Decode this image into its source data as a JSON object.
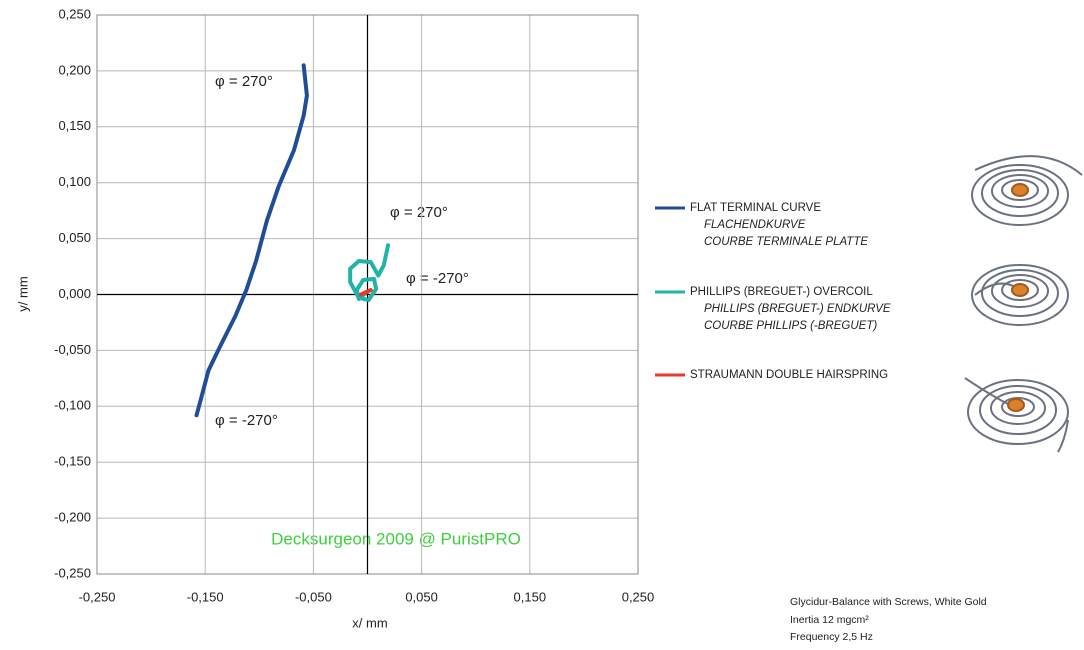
{
  "chart_data": {
    "type": "line",
    "xlabel": "x/ mm",
    "ylabel": "y/ mm",
    "xlim": [
      -0.25,
      0.25
    ],
    "ylim": [
      -0.25,
      0.25
    ],
    "xticks": [
      {
        "value": -0.25,
        "label": "-0,250"
      },
      {
        "value": -0.15,
        "label": "-0,150"
      },
      {
        "value": -0.05,
        "label": "-0,050"
      },
      {
        "value": 0.05,
        "label": "0,050"
      },
      {
        "value": 0.15,
        "label": "0,150"
      },
      {
        "value": 0.25,
        "label": "0,250"
      }
    ],
    "yticks": [
      {
        "value": -0.25,
        "label": "-0,250"
      },
      {
        "value": -0.2,
        "label": "-0,200"
      },
      {
        "value": -0.15,
        "label": "-0,150"
      },
      {
        "value": -0.1,
        "label": "-0,100"
      },
      {
        "value": -0.05,
        "label": "-0,050"
      },
      {
        "value": 0,
        "label": "0,000"
      },
      {
        "value": 0.05,
        "label": "0,050"
      },
      {
        "value": 0.1,
        "label": "0,100"
      },
      {
        "value": 0.15,
        "label": "0,150"
      },
      {
        "value": 0.2,
        "label": "0,200"
      },
      {
        "value": 0.25,
        "label": "0,250"
      }
    ],
    "grid": true,
    "series": [
      {
        "name": "FLAT TERMINAL CURVE",
        "subnames": [
          "FLACHENDKURVE",
          "COURBE TERMINALE PLATTE"
        ],
        "color": "#1f4e96",
        "x": [
          -0.158,
          -0.153,
          -0.147,
          -0.136,
          -0.122,
          -0.112,
          -0.103,
          -0.093,
          -0.082,
          -0.068,
          -0.059,
          -0.056,
          -0.059
        ],
        "values": [
          -0.108,
          -0.09,
          -0.068,
          -0.046,
          -0.019,
          0.004,
          0.03,
          0.066,
          0.097,
          0.129,
          0.16,
          0.178,
          0.205
        ]
      },
      {
        "name": "PHILLIPS (BREGUET-) OVERCOIL",
        "subnames": [
          "PHILLIPS (BREGUET-) ENDKURVE",
          "COURBE PHILLIPS (-BREGUET)"
        ],
        "color": "#22b3a8",
        "x": [
          -0.001,
          -0.008,
          -0.01,
          -0.004,
          0.006,
          0.008,
          0.001,
          -0.008,
          -0.016,
          -0.016,
          -0.008,
          0.003,
          0.01,
          0.015,
          0.019
        ],
        "values": [
          0.002,
          -0.004,
          0.004,
          0.013,
          0.014,
          0.005,
          -0.005,
          -0.003,
          0.011,
          0.023,
          0.03,
          0.029,
          0.017,
          0.026,
          0.044
        ]
      },
      {
        "name": "STRAUMANN DOUBLE HAIRSPRING",
        "subnames": [],
        "color": "#e8392a",
        "x": [
          -0.006,
          0.003
        ],
        "values": [
          0,
          0.004
        ]
      }
    ],
    "annotations": [
      "φ = 270°",
      "φ = -270°",
      "φ = 270°",
      "φ = -270°"
    ],
    "watermark": "Decksurgeon 2009 @ PuristPRO",
    "notes": [
      "Glycidur-Balance with Screws, White Gold",
      "Inertia 12 mgcm²",
      "Frequency 2,5 Hz"
    ]
  }
}
